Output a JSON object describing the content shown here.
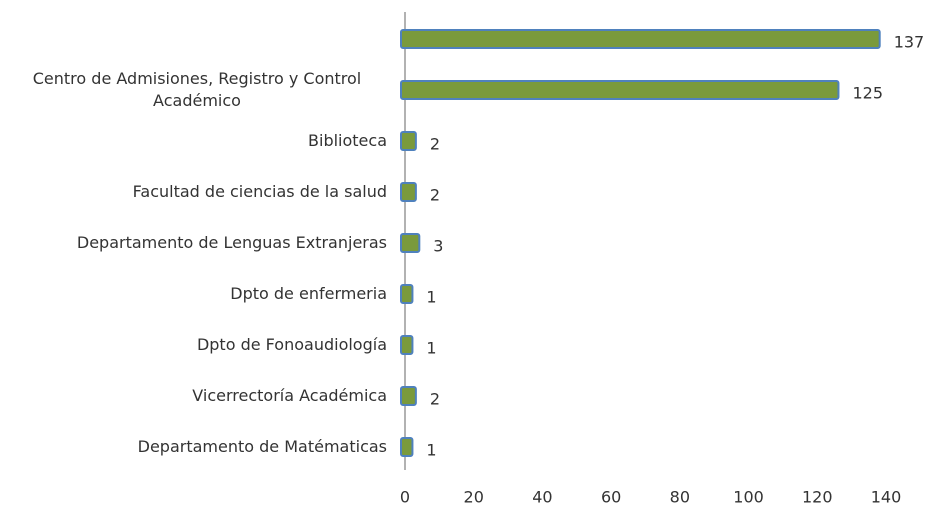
{
  "chart_data": {
    "type": "bar",
    "orientation": "horizontal",
    "categories": [
      null,
      "Centro de Admisiones, Registro y Control Académico",
      "Biblioteca",
      "Facultad de ciencias de la salud",
      "Departamento de Lenguas Extranjeras",
      "Dpto de enfermeria",
      "Dpto de Fonoaudiología",
      "Vicerrectoría Académica",
      "Departamento de Matématicas"
    ],
    "values": [
      137,
      125,
      2,
      2,
      3,
      1,
      1,
      2,
      1
    ],
    "color": "#7a9a3c",
    "edge_color": "#4f81bd",
    "xlim": [
      0,
      140
    ],
    "xticks": [
      0,
      20,
      40,
      60,
      80,
      100,
      120,
      140
    ],
    "grid": false
  }
}
